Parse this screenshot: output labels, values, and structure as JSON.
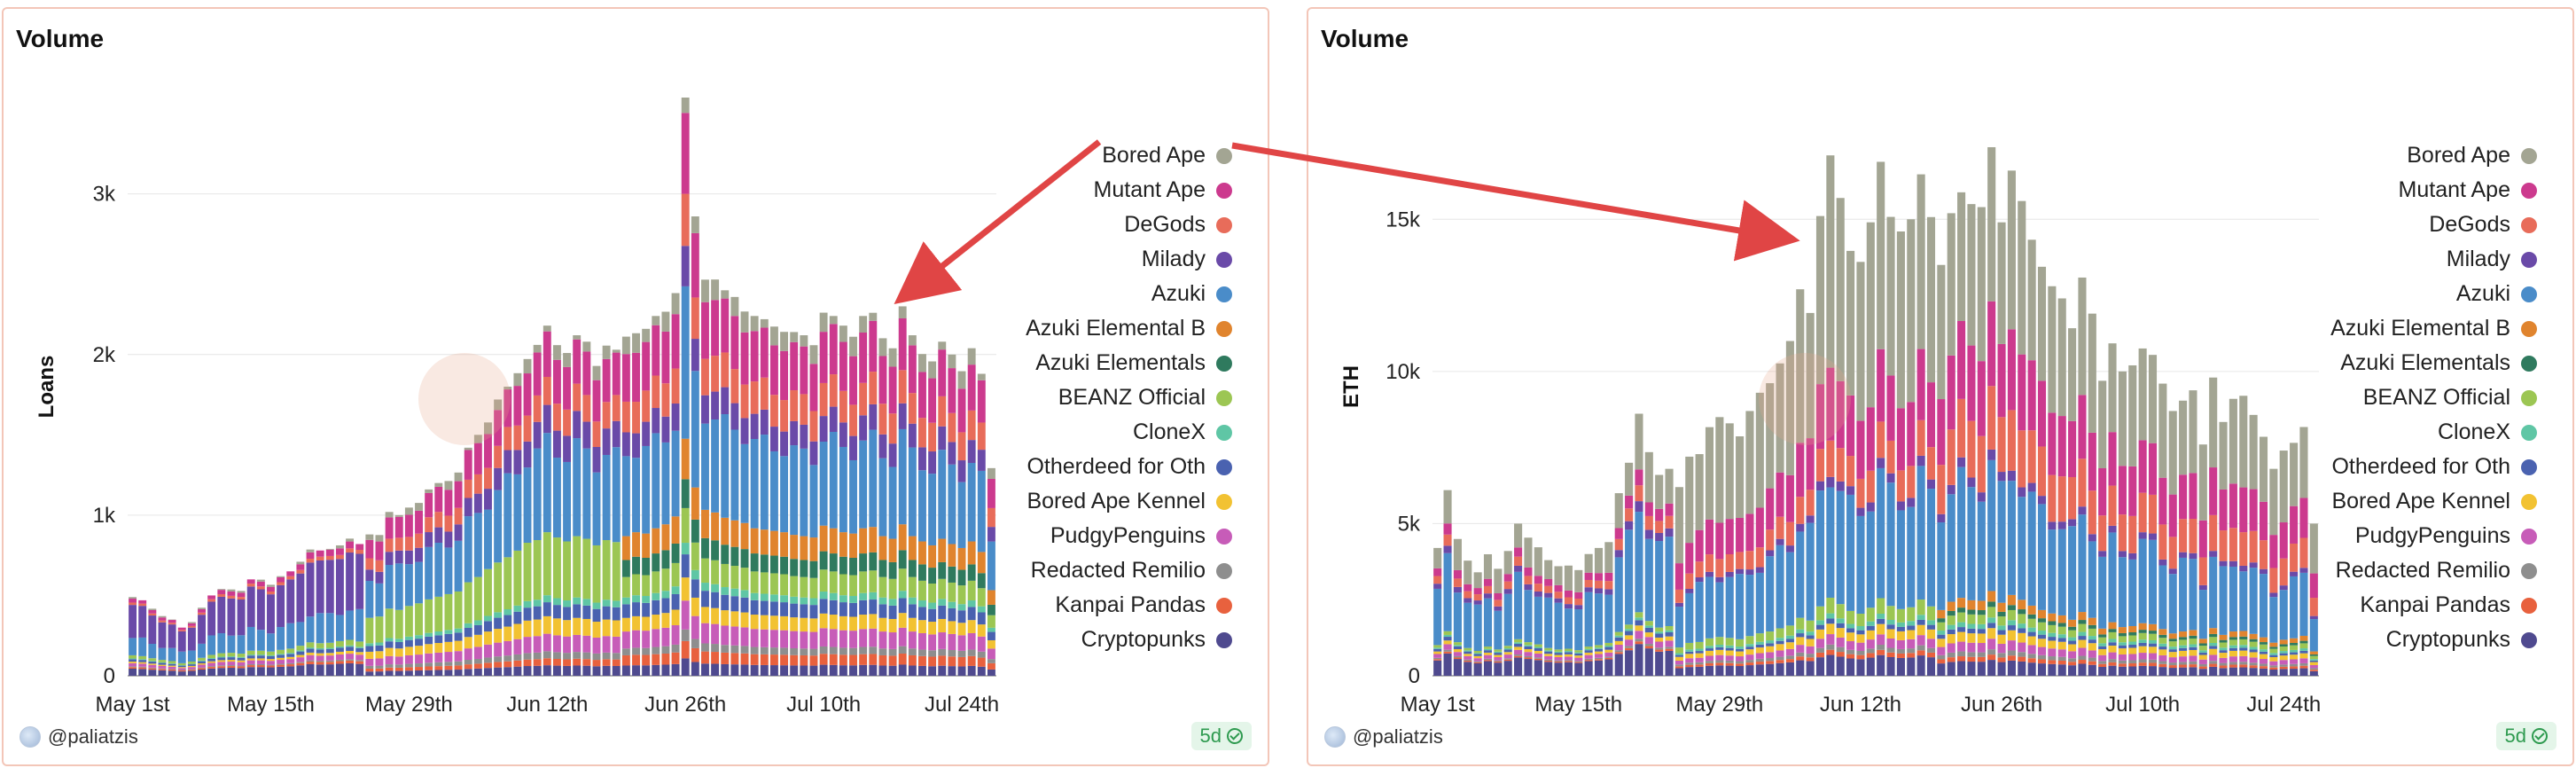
{
  "panels": [
    {
      "title": "Volume",
      "user": "@paliatzis",
      "freshness": "5d"
    },
    {
      "title": "Volume",
      "user": "@paliatzis",
      "freshness": "5d"
    }
  ],
  "legend": [
    {
      "name": "Bored Ape",
      "color": "#a3a593"
    },
    {
      "name": "Mutant Ape",
      "color": "#cc3a8e"
    },
    {
      "name": "DeGods",
      "color": "#e86c5a"
    },
    {
      "name": "Milady",
      "color": "#6a4aa8"
    },
    {
      "name": "Azuki",
      "color": "#4a8cc9"
    },
    {
      "name": "Azuki Elemental B",
      "color": "#e0842e"
    },
    {
      "name": "Azuki Elementals",
      "color": "#2f7a5e"
    },
    {
      "name": "BEANZ Official",
      "color": "#9cc653"
    },
    {
      "name": "CloneX",
      "color": "#5fc6a5"
    },
    {
      "name": "Otherdeed for Oth",
      "color": "#4a62b0"
    },
    {
      "name": "Bored Ape Kennel",
      "color": "#f2c232"
    },
    {
      "name": "PudgyPenguins",
      "color": "#c75cb8"
    },
    {
      "name": "Redacted Remilio",
      "color": "#8e8e8e"
    },
    {
      "name": "Kanpai Pandas",
      "color": "#e8613e"
    },
    {
      "name": "Cryptopunks",
      "color": "#4f4a8f"
    }
  ],
  "chart_data": [
    {
      "type": "bar",
      "stacked": true,
      "title": "Volume",
      "xlabel": "",
      "ylabel": "Loans",
      "ylim": [
        0,
        3600
      ],
      "yticks": [
        {
          "value": 0,
          "label": "0"
        },
        {
          "value": 1000,
          "label": "1k"
        },
        {
          "value": 2000,
          "label": "2k"
        },
        {
          "value": 3000,
          "label": "3k"
        }
      ],
      "xticks": [
        {
          "index": 0,
          "label": "May 1st"
        },
        {
          "index": 14,
          "label": "May 15th"
        },
        {
          "index": 28,
          "label": "May 29th"
        },
        {
          "index": 42,
          "label": "Jun 12th"
        },
        {
          "index": 56,
          "label": "Jun 26th"
        },
        {
          "index": 70,
          "label": "Jul 10th"
        },
        {
          "index": 84,
          "label": "Jul 24th"
        }
      ],
      "days": 88,
      "totals": [
        490,
        470,
        420,
        380,
        350,
        300,
        340,
        430,
        500,
        540,
        550,
        530,
        600,
        600,
        580,
        620,
        650,
        720,
        800,
        780,
        790,
        830,
        860,
        820,
        880,
        900,
        1020,
        1000,
        1060,
        1100,
        1160,
        1200,
        1240,
        1280,
        1420,
        1500,
        1620,
        1720,
        1800,
        1900,
        2020,
        2060,
        2180,
        2100,
        2040,
        2120,
        2080,
        1980,
        2060,
        2030,
        2120,
        2180,
        2160,
        2240,
        2300,
        2420,
        3600,
        2860,
        2520,
        2480,
        2400,
        2360,
        2320,
        2240,
        2220,
        2200,
        2180,
        2140,
        2120,
        2100,
        2280,
        2240,
        2180,
        2160,
        2240,
        2260,
        2120,
        2080,
        2300,
        2120,
        2040,
        1980,
        2080,
        2000,
        1940,
        2040,
        1880,
        1300
      ],
      "share_profiles": [
        {
          "until": 24,
          "shares": [
            0.02,
            0.05,
            0.03,
            0.42,
            0.22,
            0,
            0,
            0.04,
            0.01,
            0.03,
            0.02,
            0.04,
            0.01,
            0.02,
            0.09
          ]
        },
        {
          "until": 50,
          "shares": [
            0.04,
            0.13,
            0.08,
            0.08,
            0.26,
            0,
            0,
            0.18,
            0.02,
            0.04,
            0.05,
            0.05,
            0.02,
            0.02,
            0.03
          ]
        },
        {
          "until": 88,
          "shares": [
            0.05,
            0.14,
            0.09,
            0.07,
            0.24,
            0.07,
            0.05,
            0.06,
            0.02,
            0.04,
            0.04,
            0.05,
            0.02,
            0.03,
            0.03
          ]
        }
      ],
      "series": [
        {
          "name": "Bored Ape"
        },
        {
          "name": "Mutant Ape"
        },
        {
          "name": "DeGods"
        },
        {
          "name": "Milady"
        },
        {
          "name": "Azuki"
        },
        {
          "name": "Azuki Elemental B"
        },
        {
          "name": "Azuki Elementals"
        },
        {
          "name": "BEANZ Official"
        },
        {
          "name": "CloneX"
        },
        {
          "name": "Otherdeed for Oth"
        },
        {
          "name": "Bored Ape Kennel"
        },
        {
          "name": "PudgyPenguins"
        },
        {
          "name": "Redacted Remilio"
        },
        {
          "name": "Kanpai Pandas"
        },
        {
          "name": "Cryptopunks"
        }
      ]
    },
    {
      "type": "bar",
      "stacked": true,
      "title": "Volume",
      "xlabel": "",
      "ylabel": "ETH",
      "ylim": [
        0,
        19000
      ],
      "yticks": [
        {
          "value": 0,
          "label": "0"
        },
        {
          "value": 5000,
          "label": "5k"
        },
        {
          "value": 10000,
          "label": "10k"
        },
        {
          "value": 15000,
          "label": "15k"
        }
      ],
      "xticks": [
        {
          "index": 0,
          "label": "May 1st"
        },
        {
          "index": 14,
          "label": "May 15th"
        },
        {
          "index": 28,
          "label": "May 29th"
        },
        {
          "index": 42,
          "label": "Jun 12th"
        },
        {
          "index": 56,
          "label": "Jun 26th"
        },
        {
          "index": 70,
          "label": "Jul 10th"
        },
        {
          "index": 84,
          "label": "Jul 24th"
        }
      ],
      "days": 88,
      "totals": [
        4200,
        6100,
        4600,
        3800,
        3400,
        4000,
        3600,
        4100,
        5000,
        4600,
        4300,
        3800,
        3600,
        3700,
        3500,
        4000,
        4200,
        4500,
        6000,
        7000,
        8700,
        7500,
        6600,
        6800,
        6200,
        7200,
        7400,
        8200,
        8500,
        8300,
        8000,
        8700,
        9300,
        9700,
        10400,
        11000,
        12700,
        12100,
        15200,
        17100,
        15700,
        14200,
        13600,
        14900,
        17000,
        15300,
        14600,
        15000,
        16700,
        15200,
        13500,
        15200,
        16000,
        15500,
        15400,
        17400,
        15000,
        16600,
        15600,
        14400,
        13500,
        12800,
        12400,
        11500,
        13100,
        11900,
        9700,
        11000,
        10000,
        10200,
        10800,
        10600,
        9600,
        8700,
        9100,
        9400,
        7600,
        9800,
        8400,
        9100,
        9200,
        8600,
        7900,
        6800,
        7400,
        7700,
        8200,
        5000
      ],
      "share_profiles": [
        {
          "until": 24,
          "shares": [
            0.2,
            0.06,
            0.06,
            0.04,
            0.4,
            0,
            0,
            0.02,
            0.01,
            0.02,
            0.02,
            0.03,
            0.01,
            0.01,
            0.12
          ]
        },
        {
          "until": 50,
          "shares": [
            0.38,
            0.14,
            0.07,
            0.02,
            0.24,
            0,
            0,
            0.03,
            0.01,
            0.01,
            0.02,
            0.02,
            0.01,
            0.01,
            0.04
          ]
        },
        {
          "until": 88,
          "shares": [
            0.3,
            0.16,
            0.12,
            0.02,
            0.24,
            0.02,
            0.01,
            0.02,
            0.01,
            0.01,
            0.02,
            0.02,
            0.01,
            0.01,
            0.03
          ]
        }
      ],
      "series": [
        {
          "name": "Bored Ape"
        },
        {
          "name": "Mutant Ape"
        },
        {
          "name": "DeGods"
        },
        {
          "name": "Milady"
        },
        {
          "name": "Azuki"
        },
        {
          "name": "Azuki Elemental B"
        },
        {
          "name": "Azuki Elementals"
        },
        {
          "name": "BEANZ Official"
        },
        {
          "name": "CloneX"
        },
        {
          "name": "Otherdeed for Oth"
        },
        {
          "name": "Bored Ape Kennel"
        },
        {
          "name": "PudgyPenguins"
        },
        {
          "name": "Redacted Remilio"
        },
        {
          "name": "Kanpai Pandas"
        },
        {
          "name": "Cryptopunks"
        }
      ]
    }
  ]
}
